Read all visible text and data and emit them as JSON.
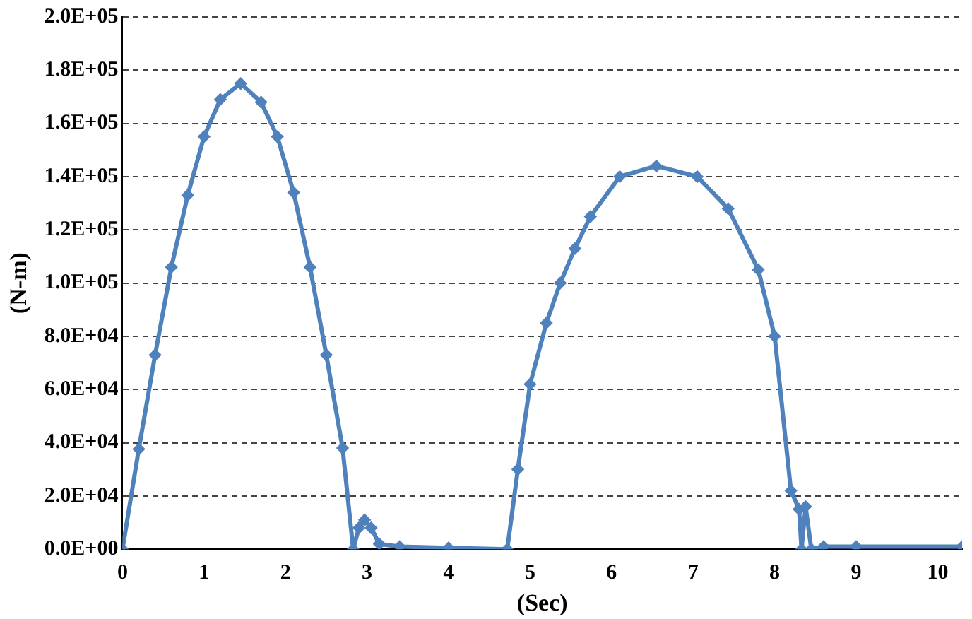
{
  "chart_data": {
    "type": "line",
    "xlabel": "(Sec)",
    "ylabel": "(N-m)",
    "x": [
      0,
      0.2,
      0.4,
      0.6,
      0.8,
      1.0,
      1.2,
      1.45,
      1.7,
      1.9,
      2.1,
      2.3,
      2.5,
      2.7,
      2.83,
      2.9,
      2.97,
      3.05,
      3.15,
      3.4,
      4.0,
      4.72,
      4.85,
      5.0,
      5.2,
      5.37,
      5.55,
      5.74,
      6.1,
      6.55,
      7.05,
      7.43,
      7.8,
      8.0,
      8.2,
      8.3,
      8.33,
      8.38,
      8.45,
      8.6,
      9.0,
      10.3
    ],
    "series": [
      {
        "color": "#4f81bd",
        "values": [
          0,
          37600,
          73000,
          106000,
          133000,
          155000,
          169000,
          175000,
          168000,
          155000,
          134000,
          106000,
          73000,
          38000,
          0,
          8000,
          11000,
          8000,
          2000,
          1000,
          500,
          0,
          30000,
          62000,
          85000,
          100000,
          113000,
          125000,
          140000,
          144000,
          140000,
          128000,
          105000,
          80000,
          22000,
          15000,
          0,
          16000,
          0,
          1000,
          1000,
          1000
        ]
      }
    ],
    "xlim": [
      0,
      10.3
    ],
    "xticks": [
      0,
      1,
      2,
      3,
      4,
      5,
      6,
      7,
      8,
      9,
      10
    ],
    "ylim": [
      0,
      200000
    ],
    "yticks": [
      {
        "value": 0,
        "label": "0.0E+00"
      },
      {
        "value": 20000,
        "label": "2.0E+04"
      },
      {
        "value": 40000,
        "label": "4.0E+04"
      },
      {
        "value": 60000,
        "label": "6.0E+04"
      },
      {
        "value": 80000,
        "label": "8.0E+04"
      },
      {
        "value": 100000,
        "label": "1.0E+05"
      },
      {
        "value": 120000,
        "label": "1.2E+05"
      },
      {
        "value": 140000,
        "label": "1.4E+05"
      },
      {
        "value": 160000,
        "label": "1.6E+05"
      },
      {
        "value": 180000,
        "label": "1.8E+05"
      },
      {
        "value": 200000,
        "label": "2.0E+05"
      }
    ],
    "grid": "y",
    "marker": "diamond",
    "line_style": "solid",
    "legend": false
  }
}
